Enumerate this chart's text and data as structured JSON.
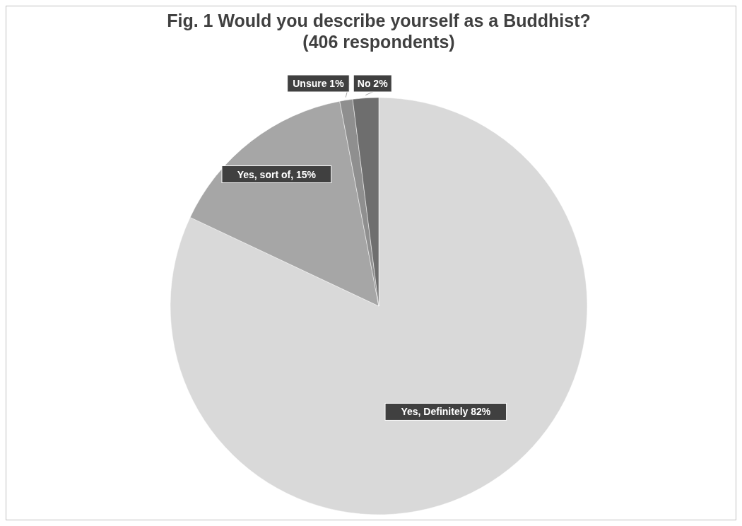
{
  "chart_data": {
    "type": "pie",
    "title": "Fig. 1 Would you describe yourself as a Buddhist?\n(406 respondents)",
    "categories": [
      "Yes, Definitely",
      "Yes, sort of",
      "Unsure",
      "No"
    ],
    "values": [
      82,
      15,
      1,
      2
    ],
    "colors": [
      "#d9d9d9",
      "#a6a6a6",
      "#8f8f8f",
      "#6e6e6e"
    ],
    "value_labels": [
      " 82%",
      ", 15%",
      " 1%",
      " 2%"
    ]
  }
}
